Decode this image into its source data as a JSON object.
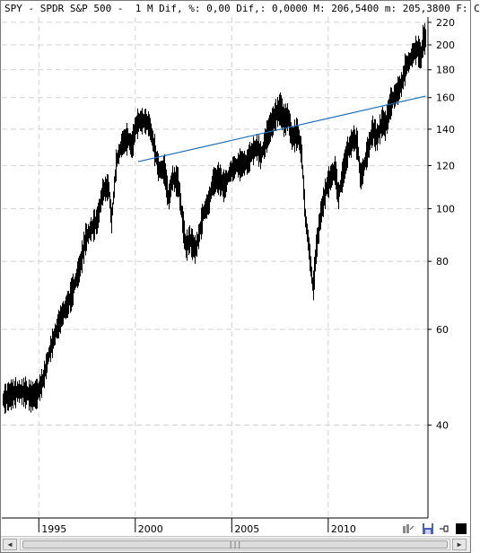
{
  "header": {
    "text": "SPY - SPDR S&P 500 -  1 M Dif, %: 0,00 Dif,: 0,0000 M: 206,5400 m: 205,3800 F: C"
  },
  "chart_data": {
    "type": "candlestick-log",
    "title": "SPY - SPDR S&P 500",
    "x_tick_labels": [
      "1995",
      "2000",
      "2005",
      "2010"
    ],
    "x_ticks": [
      1995,
      2000,
      2005,
      2010
    ],
    "xlim": [
      1993.08,
      2015.17
    ],
    "y_tick_labels": [
      "220",
      "200",
      "180",
      "160",
      "140",
      "120",
      "100",
      "80",
      "60",
      "40"
    ],
    "y_ticks": [
      220,
      200,
      180,
      160,
      140,
      120,
      100,
      80,
      60,
      40
    ],
    "y_scale": "log",
    "ylim": [
      27,
      225
    ],
    "grid": true,
    "series_color": "#000000",
    "trendline": {
      "color": "#1f6db5",
      "points": [
        [
          2000.15,
          122
        ],
        [
          2015.05,
          161
        ]
      ]
    },
    "series": [
      {
        "name": "SPY",
        "points": [
          [
            1993.1,
            44.5
          ],
          [
            1993.5,
            45.5
          ],
          [
            1993.9,
            46.2
          ],
          [
            1994.3,
            46.0
          ],
          [
            1994.6,
            45.2
          ],
          [
            1994.9,
            45.8
          ],
          [
            1995.2,
            48.5
          ],
          [
            1995.5,
            54
          ],
          [
            1995.9,
            60
          ],
          [
            1996.2,
            64
          ],
          [
            1996.5,
            67
          ],
          [
            1996.8,
            72
          ],
          [
            1997.1,
            78
          ],
          [
            1997.4,
            88
          ],
          [
            1997.7,
            92
          ],
          [
            1998.0,
            95
          ],
          [
            1998.3,
            108
          ],
          [
            1998.6,
            110
          ],
          [
            1998.75,
            95
          ],
          [
            1999.0,
            122
          ],
          [
            1999.3,
            132
          ],
          [
            1999.6,
            135
          ],
          [
            1999.8,
            130
          ],
          [
            2000.0,
            142
          ],
          [
            2000.2,
            145
          ],
          [
            2000.5,
            145
          ],
          [
            2000.7,
            143
          ],
          [
            2000.9,
            133
          ],
          [
            2001.2,
            118
          ],
          [
            2001.5,
            118
          ],
          [
            2001.7,
            104
          ],
          [
            2001.9,
            114
          ],
          [
            2002.2,
            112
          ],
          [
            2002.5,
            91
          ],
          [
            2002.6,
            85
          ],
          [
            2002.8,
            88
          ],
          [
            2003.1,
            84
          ],
          [
            2003.3,
            90
          ],
          [
            2003.5,
            98
          ],
          [
            2003.8,
            103
          ],
          [
            2004.0,
            112
          ],
          [
            2004.3,
            114
          ],
          [
            2004.6,
            110
          ],
          [
            2004.9,
            117
          ],
          [
            2005.2,
            120
          ],
          [
            2005.5,
            121
          ],
          [
            2005.8,
            122
          ],
          [
            2006.0,
            127
          ],
          [
            2006.3,
            130
          ],
          [
            2006.5,
            125
          ],
          [
            2006.8,
            136
          ],
          [
            2007.0,
            142
          ],
          [
            2007.3,
            150
          ],
          [
            2007.5,
            153
          ],
          [
            2007.7,
            145
          ],
          [
            2007.9,
            148
          ],
          [
            2008.1,
            135
          ],
          [
            2008.4,
            138
          ],
          [
            2008.6,
            127
          ],
          [
            2008.8,
            96
          ],
          [
            2008.95,
            87
          ],
          [
            2009.1,
            77
          ],
          [
            2009.2,
            71
          ],
          [
            2009.35,
            84
          ],
          [
            2009.6,
            98
          ],
          [
            2009.9,
            110
          ],
          [
            2010.2,
            116
          ],
          [
            2010.35,
            118
          ],
          [
            2010.5,
            105
          ],
          [
            2010.8,
            119
          ],
          [
            2011.0,
            128
          ],
          [
            2011.3,
            135
          ],
          [
            2011.5,
            131
          ],
          [
            2011.65,
            114
          ],
          [
            2011.8,
            118
          ],
          [
            2012.0,
            127
          ],
          [
            2012.3,
            140
          ],
          [
            2012.5,
            135
          ],
          [
            2012.8,
            145
          ],
          [
            2012.95,
            142
          ],
          [
            2013.2,
            156
          ],
          [
            2013.5,
            163
          ],
          [
            2013.8,
            170
          ],
          [
            2014.0,
            183
          ],
          [
            2014.2,
            187
          ],
          [
            2014.4,
            194
          ],
          [
            2014.6,
            197
          ],
          [
            2014.8,
            190
          ],
          [
            2014.9,
            205
          ],
          [
            2015.05,
            206
          ]
        ]
      }
    ]
  },
  "toolbar": {
    "icons": [
      "chart-type-icon",
      "save-icon",
      "pin-icon",
      "color-box-icon"
    ]
  },
  "scrollbar": {
    "left_arrow": "◀",
    "right_arrow": "▶",
    "thumb_grip": "|||"
  }
}
